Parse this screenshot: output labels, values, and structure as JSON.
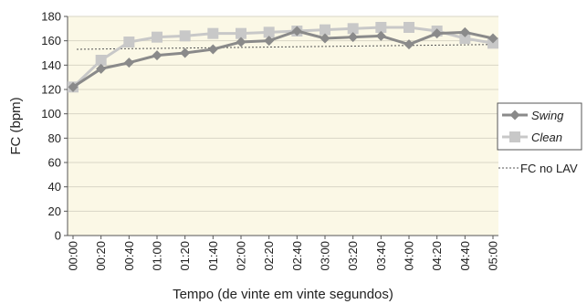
{
  "chart_data": {
    "type": "line",
    "xlabel": "Tempo (de vinte em vinte segundos)",
    "ylabel": "FC (bpm)",
    "ylim": [
      0,
      180
    ],
    "yticks": [
      0,
      20,
      40,
      60,
      80,
      100,
      120,
      140,
      160,
      180
    ],
    "categories": [
      "00:00",
      "00:20",
      "00:40",
      "01:00",
      "01:20",
      "01:40",
      "02:00",
      "02:20",
      "02:40",
      "03:00",
      "03:20",
      "03:40",
      "04:00",
      "04:20",
      "04:40",
      "05:00"
    ],
    "plot_background": "#fbf8e6",
    "grid": "horizontal",
    "legend_position": "right",
    "series": [
      {
        "name": "Swing",
        "color": "#8a8a8a",
        "marker": "diamond",
        "values": [
          122,
          137,
          142,
          148,
          150,
          153,
          159,
          160,
          168,
          162,
          163,
          164,
          157,
          166,
          167,
          162
        ]
      },
      {
        "name": "Clean",
        "color": "#c8c8c8",
        "marker": "square",
        "values": [
          122,
          144,
          159,
          163,
          164,
          166,
          166,
          167,
          168,
          169,
          170,
          171,
          171,
          168,
          162,
          158
        ]
      }
    ],
    "reference_line": {
      "name": "FC no LAV",
      "color": "#555555",
      "style": "dotted",
      "start": 153,
      "end": 157
    }
  }
}
